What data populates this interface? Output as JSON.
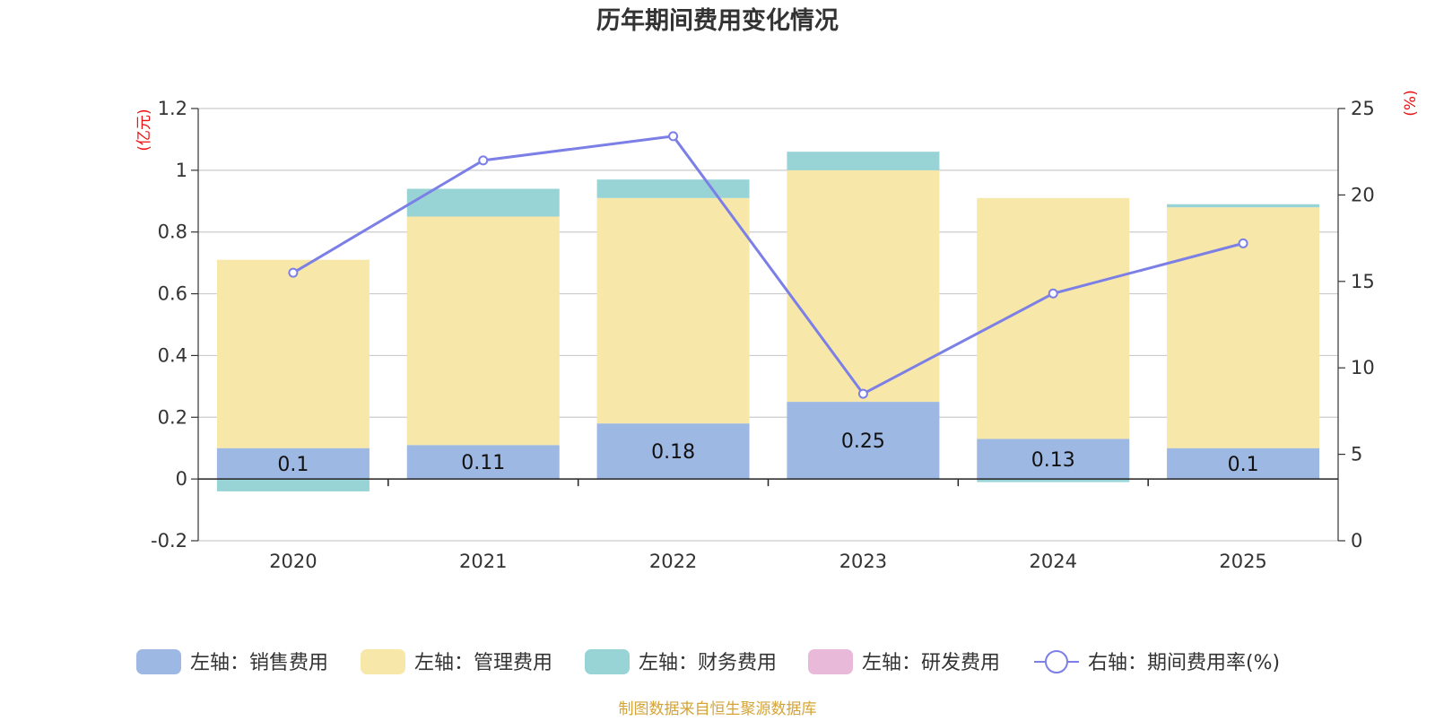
{
  "chart_data": {
    "type": "bar",
    "stacked": true,
    "title": "历年期间费用变化情况",
    "categories": [
      "2020",
      "2021",
      "2022",
      "2023",
      "2024",
      "2025"
    ],
    "left_axis": {
      "unit": "(亿元)",
      "ticks": [
        "-0.2",
        "0",
        "0.2",
        "0.4",
        "0.6",
        "0.8",
        "1",
        "1.2"
      ],
      "ylim": [
        -0.2,
        1.2
      ]
    },
    "right_axis": {
      "unit": "(%)",
      "ticks": [
        "0",
        "5",
        "10",
        "15",
        "20",
        "25"
      ],
      "ylim": [
        0,
        25
      ]
    },
    "series": [
      {
        "name": "左轴：销售费用",
        "type": "bar",
        "axis": "left",
        "color": "#9db8e2",
        "values": [
          0.1,
          0.11,
          0.18,
          0.25,
          0.13,
          0.1
        ],
        "labels": [
          "0.1",
          "0.11",
          "0.18",
          "0.25",
          "0.13",
          "0.1"
        ]
      },
      {
        "name": "左轴：管理费用",
        "type": "bar",
        "axis": "left",
        "color": "#f7e7a9",
        "values": [
          0.61,
          0.74,
          0.73,
          0.75,
          0.78,
          0.78
        ]
      },
      {
        "name": "左轴：财务费用",
        "type": "bar",
        "axis": "left",
        "color": "#98d4d6",
        "values": [
          -0.04,
          0.09,
          0.06,
          0.06,
          -0.01,
          0.01
        ]
      },
      {
        "name": "左轴：研发费用",
        "type": "bar",
        "axis": "left",
        "color": "#e9b9da",
        "values": [
          0,
          0,
          0,
          0,
          0,
          0
        ]
      },
      {
        "name": "右轴：期间费用率(%)",
        "type": "line",
        "axis": "right",
        "color": "#7b7fe6",
        "values": [
          15.5,
          22.0,
          23.4,
          8.5,
          14.3,
          17.2
        ]
      }
    ],
    "legend_position": "bottom",
    "grid": true
  },
  "source_text": "制图数据来自恒生聚源数据库",
  "colors": {
    "unit_label": "#ee1111",
    "source": "#d4a437",
    "axis": "#333333",
    "grid": "#cccccc"
  }
}
